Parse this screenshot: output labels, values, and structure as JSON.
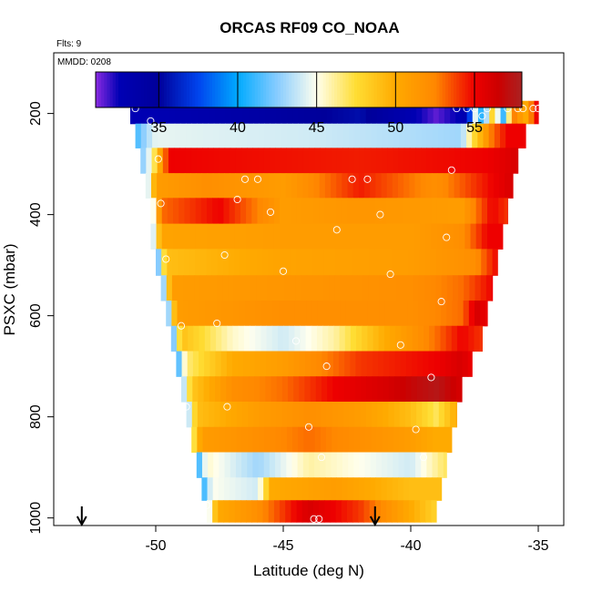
{
  "chart_data": {
    "type": "heatmap",
    "title": "ORCAS RF09 CO_NOAA",
    "flights_label": "Flts: 9",
    "date_label": "MMDD: 0208",
    "xlabel": "Latitude (deg N)",
    "ylabel": "PSXC (mbar)",
    "xlim": [
      -54,
      -34
    ],
    "ylim": [
      1015,
      80
    ],
    "x_ticks": [
      -50,
      -45,
      -40,
      -35
    ],
    "x_tick_labels": [
      "-50",
      "-45",
      "-40",
      "-35"
    ],
    "y_ticks": [
      200,
      400,
      600,
      800,
      1000
    ],
    "y_tick_labels": [
      "200",
      "400",
      "600",
      "800",
      "1000"
    ],
    "colorbar": {
      "range": [
        31,
        58
      ],
      "ticks": [
        35,
        40,
        45,
        50,
        55
      ],
      "tick_labels": [
        "35",
        "40",
        "45",
        "50",
        "55"
      ],
      "stops": [
        {
          "value": 31,
          "color": "#8a2be2"
        },
        {
          "value": 32.5,
          "color": "#0000b4"
        },
        {
          "value": 35,
          "color": "#00009a"
        },
        {
          "value": 37.5,
          "color": "#0044ee"
        },
        {
          "value": 40,
          "color": "#00aaff"
        },
        {
          "value": 42.5,
          "color": "#88ccff"
        },
        {
          "value": 45,
          "color": "#ffffee"
        },
        {
          "value": 47.5,
          "color": "#ffdd33"
        },
        {
          "value": 50,
          "color": "#ffaa00"
        },
        {
          "value": 52.5,
          "color": "#ff8800"
        },
        {
          "value": 55,
          "color": "#ee0000"
        },
        {
          "value": 56.5,
          "color": "#cc0000"
        },
        {
          "value": 58,
          "color": "#aa2222"
        }
      ]
    },
    "rows": [
      {
        "p_top": 175,
        "p_bot": 220,
        "lat_min": -51.0,
        "lat_max": -35.0,
        "anchors": [
          [
            -51.0,
            32.5
          ],
          [
            -46,
            34
          ],
          [
            -42,
            35.5
          ],
          [
            -39,
            31.5
          ],
          [
            -37.8,
            33
          ],
          [
            -37.5,
            45
          ],
          [
            -37.2,
            40
          ],
          [
            -36.8,
            48
          ],
          [
            -36.3,
            40
          ],
          [
            -36,
            53
          ],
          [
            -35.5,
            50
          ],
          [
            -35.0,
            56
          ]
        ]
      },
      {
        "p_top": 220,
        "p_bot": 268,
        "lat_min": -50.8,
        "lat_max": -35.5,
        "anchors": [
          [
            -50.8,
            41
          ],
          [
            -50.4,
            43
          ],
          [
            -50,
            44.5
          ],
          [
            -44,
            44
          ],
          [
            -38,
            43
          ],
          [
            -37.6,
            47
          ],
          [
            -37.2,
            50
          ],
          [
            -36.8,
            53
          ],
          [
            -36.2,
            55
          ],
          [
            -35.5,
            55
          ]
        ]
      },
      {
        "p_top": 268,
        "p_bot": 318,
        "lat_min": -50.6,
        "lat_max": -35.8,
        "anchors": [
          [
            -50.6,
            42
          ],
          [
            -50.2,
            45
          ],
          [
            -49.5,
            55
          ],
          [
            -42,
            54.5
          ],
          [
            -37,
            55
          ],
          [
            -35.8,
            56
          ]
        ]
      },
      {
        "p_top": 318,
        "p_bot": 367,
        "lat_min": -50.4,
        "lat_max": -36.0,
        "anchors": [
          [
            -50.4,
            42
          ],
          [
            -50.0,
            51
          ],
          [
            -48,
            52
          ],
          [
            -45,
            51
          ],
          [
            -42,
            54.5
          ],
          [
            -39,
            52
          ],
          [
            -36.8,
            55
          ],
          [
            -36.0,
            56
          ]
        ]
      },
      {
        "p_top": 367,
        "p_bot": 418,
        "lat_min": -50.2,
        "lat_max": -36.2,
        "anchors": [
          [
            -50.2,
            42
          ],
          [
            -49.8,
            53
          ],
          [
            -47.5,
            55
          ],
          [
            -45,
            51
          ],
          [
            -42,
            51.5
          ],
          [
            -38,
            51
          ],
          [
            -36.8,
            55
          ],
          [
            -36.2,
            54
          ]
        ]
      },
      {
        "p_top": 418,
        "p_bot": 468,
        "lat_min": -50.2,
        "lat_max": -36.4,
        "anchors": [
          [
            -50.2,
            42
          ],
          [
            -49.8,
            50.5
          ],
          [
            -45,
            51
          ],
          [
            -40,
            51
          ],
          [
            -38,
            52
          ],
          [
            -37,
            55
          ],
          [
            -36.4,
            55
          ]
        ]
      },
      {
        "p_top": 468,
        "p_bot": 520,
        "lat_min": -50.0,
        "lat_max": -36.6,
        "anchors": [
          [
            -50.0,
            40
          ],
          [
            -49.6,
            49
          ],
          [
            -45,
            50.5
          ],
          [
            -40,
            51
          ],
          [
            -37.5,
            52
          ],
          [
            -36.6,
            55
          ]
        ]
      },
      {
        "p_top": 520,
        "p_bot": 570,
        "lat_min": -49.8,
        "lat_max": -36.8,
        "anchors": [
          [
            -49.8,
            40
          ],
          [
            -49.4,
            51
          ],
          [
            -45,
            51.5
          ],
          [
            -40,
            52
          ],
          [
            -38,
            53
          ],
          [
            -36.8,
            55
          ]
        ]
      },
      {
        "p_top": 570,
        "p_bot": 620,
        "lat_min": -49.6,
        "lat_max": -37.0,
        "anchors": [
          [
            -49.6,
            40
          ],
          [
            -49.2,
            51
          ],
          [
            -45,
            52
          ],
          [
            -40,
            52
          ],
          [
            -38,
            53
          ],
          [
            -37.4,
            56
          ],
          [
            -37.0,
            55
          ]
        ]
      },
      {
        "p_top": 620,
        "p_bot": 670,
        "lat_min": -49.4,
        "lat_max": -37.2,
        "anchors": [
          [
            -49.4,
            40
          ],
          [
            -49.0,
            49
          ],
          [
            -47,
            45.5
          ],
          [
            -45,
            44
          ],
          [
            -43,
            46
          ],
          [
            -41,
            50
          ],
          [
            -39,
            53
          ],
          [
            -38,
            55
          ],
          [
            -37.2,
            54
          ]
        ]
      },
      {
        "p_top": 670,
        "p_bot": 720,
        "lat_min": -49.2,
        "lat_max": -37.6,
        "anchors": [
          [
            -49.2,
            40
          ],
          [
            -48.8,
            46.5
          ],
          [
            -47,
            50
          ],
          [
            -45,
            51
          ],
          [
            -42,
            54
          ],
          [
            -39,
            55
          ],
          [
            -38,
            56
          ],
          [
            -37.6,
            55
          ]
        ]
      },
      {
        "p_top": 720,
        "p_bot": 770,
        "lat_min": -49.0,
        "lat_max": -38.0,
        "anchors": [
          [
            -49.0,
            42
          ],
          [
            -48.6,
            48.5
          ],
          [
            -47,
            52
          ],
          [
            -45,
            53
          ],
          [
            -43,
            55
          ],
          [
            -41,
            56
          ],
          [
            -39,
            57.5
          ],
          [
            -38,
            56
          ]
        ]
      },
      {
        "p_top": 770,
        "p_bot": 820,
        "lat_min": -48.8,
        "lat_max": -38.2,
        "anchors": [
          [
            -48.8,
            42
          ],
          [
            -48.4,
            49
          ],
          [
            -46,
            51
          ],
          [
            -44,
            52
          ],
          [
            -42,
            51
          ],
          [
            -40,
            49
          ],
          [
            -39,
            47
          ],
          [
            -38.2,
            50
          ]
        ]
      },
      {
        "p_top": 820,
        "p_bot": 870,
        "lat_min": -48.6,
        "lat_max": -38.4,
        "anchors": [
          [
            -48.6,
            46
          ],
          [
            -48.2,
            51
          ],
          [
            -46,
            52
          ],
          [
            -44,
            53
          ],
          [
            -42,
            52
          ],
          [
            -40,
            51
          ],
          [
            -39,
            50
          ],
          [
            -38.4,
            50
          ]
        ]
      },
      {
        "p_top": 870,
        "p_bot": 920,
        "lat_min": -48.4,
        "lat_max": -38.6,
        "anchors": [
          [
            -48.4,
            40
          ],
          [
            -48.0,
            45.5
          ],
          [
            -46,
            43
          ],
          [
            -44,
            46
          ],
          [
            -42,
            45
          ],
          [
            -40,
            44
          ],
          [
            -38.6,
            47
          ]
        ]
      },
      {
        "p_top": 920,
        "p_bot": 965,
        "lat_min": -48.2,
        "lat_max": -38.8,
        "anchors": [
          [
            -48.2,
            40
          ],
          [
            -47.8,
            45
          ],
          [
            -46,
            44
          ],
          [
            -45.5,
            50
          ],
          [
            -43,
            51
          ],
          [
            -40,
            49
          ],
          [
            -38.8,
            49
          ]
        ]
      },
      {
        "p_top": 965,
        "p_bot": 1008,
        "lat_min": -48.0,
        "lat_max": -39.0,
        "anchors": [
          [
            -48.0,
            43
          ],
          [
            -47.6,
            50
          ],
          [
            -46,
            52
          ],
          [
            -44,
            56
          ],
          [
            -42,
            54
          ],
          [
            -40.5,
            51
          ],
          [
            -39.0,
            48
          ]
        ]
      }
    ],
    "points": [
      [
        -50.8,
        190
      ],
      [
        -50.2,
        215
      ],
      [
        -49.9,
        290
      ],
      [
        -49.8,
        378
      ],
      [
        -49.6,
        488
      ],
      [
        -49.0,
        620
      ],
      [
        -48.8,
        780
      ],
      [
        -48.5,
        975
      ],
      [
        -48.0,
        975
      ],
      [
        -47.2,
        780
      ],
      [
        -47.3,
        480
      ],
      [
        -47.6,
        615
      ],
      [
        -46.8,
        370
      ],
      [
        -46.5,
        330
      ],
      [
        -46.0,
        330
      ],
      [
        -45.5,
        395
      ],
      [
        -45.0,
        512
      ],
      [
        -44.5,
        650
      ],
      [
        -44.0,
        820
      ],
      [
        -43.8,
        1002
      ],
      [
        -43.6,
        1002
      ],
      [
        -43.5,
        880
      ],
      [
        -43.3,
        700
      ],
      [
        -42.9,
        430
      ],
      [
        -42.3,
        330
      ],
      [
        -41.7,
        330
      ],
      [
        -41.2,
        400
      ],
      [
        -40.8,
        518
      ],
      [
        -40.4,
        658
      ],
      [
        -39.8,
        825
      ],
      [
        -39.5,
        880
      ],
      [
        -39.2,
        722
      ],
      [
        -38.8,
        572
      ],
      [
        -38.6,
        445
      ],
      [
        -38.4,
        312
      ],
      [
        -38.2,
        190
      ],
      [
        -37.8,
        190
      ],
      [
        -37.5,
        190
      ],
      [
        -37.2,
        205
      ],
      [
        -37.0,
        190
      ],
      [
        -36.2,
        190
      ],
      [
        -35.8,
        190
      ],
      [
        -35.6,
        190
      ],
      [
        -35.2,
        190
      ],
      [
        -35.0,
        190
      ]
    ],
    "arrows_lat": [
      -52.9,
      -41.4
    ]
  }
}
